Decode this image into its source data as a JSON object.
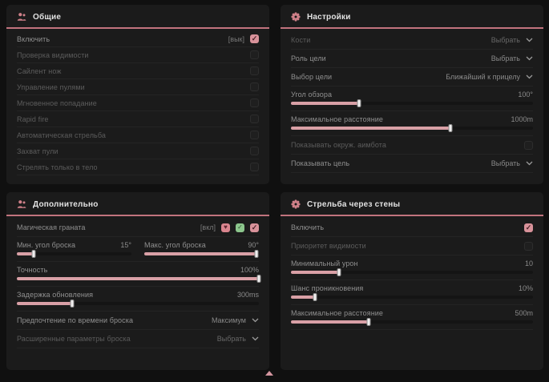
{
  "colors": {
    "accent": "#c1737d",
    "icon_pink": "#cf8089",
    "checkbox_on": "#d8929a",
    "slider_fill": "#d9a0a6",
    "panel_bg": "#1b1b1b",
    "page_bg": "#101010"
  },
  "panels": {
    "general": {
      "title": "Общие",
      "icon": "users-icon",
      "rows": [
        {
          "type": "checkbox",
          "label": "Включить",
          "tag": "[вык]",
          "checked": true
        },
        {
          "type": "checkbox",
          "label": "Проверка видимости",
          "checked": false,
          "disabled": true
        },
        {
          "type": "checkbox",
          "label": "Сайлент нож",
          "checked": false,
          "disabled": true
        },
        {
          "type": "checkbox",
          "label": "Управление пулями",
          "checked": false,
          "disabled": true
        },
        {
          "type": "checkbox",
          "label": "Мгновенное попадание",
          "checked": false,
          "disabled": true
        },
        {
          "type": "checkbox",
          "label": "Rapid fire",
          "checked": false,
          "disabled": true
        },
        {
          "type": "checkbox",
          "label": "Автоматическая стрельба",
          "checked": false,
          "disabled": true
        },
        {
          "type": "checkbox",
          "label": "Захват пули",
          "checked": false,
          "disabled": true
        },
        {
          "type": "checkbox",
          "label": "Стрелять только в тело",
          "checked": false,
          "disabled": true
        }
      ]
    },
    "settings": {
      "title": "Настройки",
      "icon": "gear-icon",
      "rows": [
        {
          "type": "dropdown",
          "label": "Кости",
          "value": "Выбрать",
          "disabled": true
        },
        {
          "type": "dropdown",
          "label": "Роль цели",
          "value": "Выбрать"
        },
        {
          "type": "dropdown",
          "label": "Выбор цели",
          "value": "Ближайший к прицелу"
        },
        {
          "type": "slider",
          "label": "Угол обзора",
          "value": "100°",
          "fill": 28
        },
        {
          "type": "slider",
          "label": "Максимальное расстояние",
          "value": "1000m",
          "fill": 66
        },
        {
          "type": "checkbox",
          "label": "Показывать окруж. аимбота",
          "checked": false,
          "disabled": true
        },
        {
          "type": "dropdown",
          "label": "Показывать цель",
          "value": "Выбрать"
        }
      ]
    },
    "additional": {
      "title": "Дополнительно",
      "icon": "users-icon",
      "rows": [
        {
          "type": "checkbox",
          "label": "Магическая граната",
          "tag": "[вкл]",
          "badges": [
            "heart-icon",
            "check-icon"
          ],
          "checked": true
        },
        {
          "type": "slider-pair",
          "sliders": [
            {
              "label": "Мин. угол броска",
              "value": "15°",
              "fill": 15
            },
            {
              "label": "Макс. угол броска",
              "value": "90°",
              "fill": 98
            }
          ]
        },
        {
          "type": "slider",
          "label": "Точность",
          "value": "100%",
          "fill": 100
        },
        {
          "type": "slider",
          "label": "Задержка обновления",
          "value": "300ms",
          "fill": 23
        },
        {
          "type": "dropdown",
          "label": "Предпочтение по времени броска",
          "value": "Максимум"
        },
        {
          "type": "dropdown",
          "label": "Расширенные параметры броска",
          "value": "Выбрать",
          "disabled": true
        }
      ]
    },
    "wallbang": {
      "title": "Стрельба через стены",
      "icon": "gear-icon",
      "rows": [
        {
          "type": "checkbox",
          "label": "Включить",
          "checked": true
        },
        {
          "type": "checkbox",
          "label": "Приоритет видимости",
          "checked": false,
          "disabled": true
        },
        {
          "type": "slider",
          "label": "Минимальный урон",
          "value": "10",
          "fill": 20
        },
        {
          "type": "slider",
          "label": "Шанс проникновения",
          "value": "10%",
          "fill": 10
        },
        {
          "type": "slider",
          "label": "Максимальное расстояние",
          "value": "500m",
          "fill": 32
        }
      ]
    }
  },
  "footer": {
    "marker_icon": "triangle-up-icon"
  }
}
